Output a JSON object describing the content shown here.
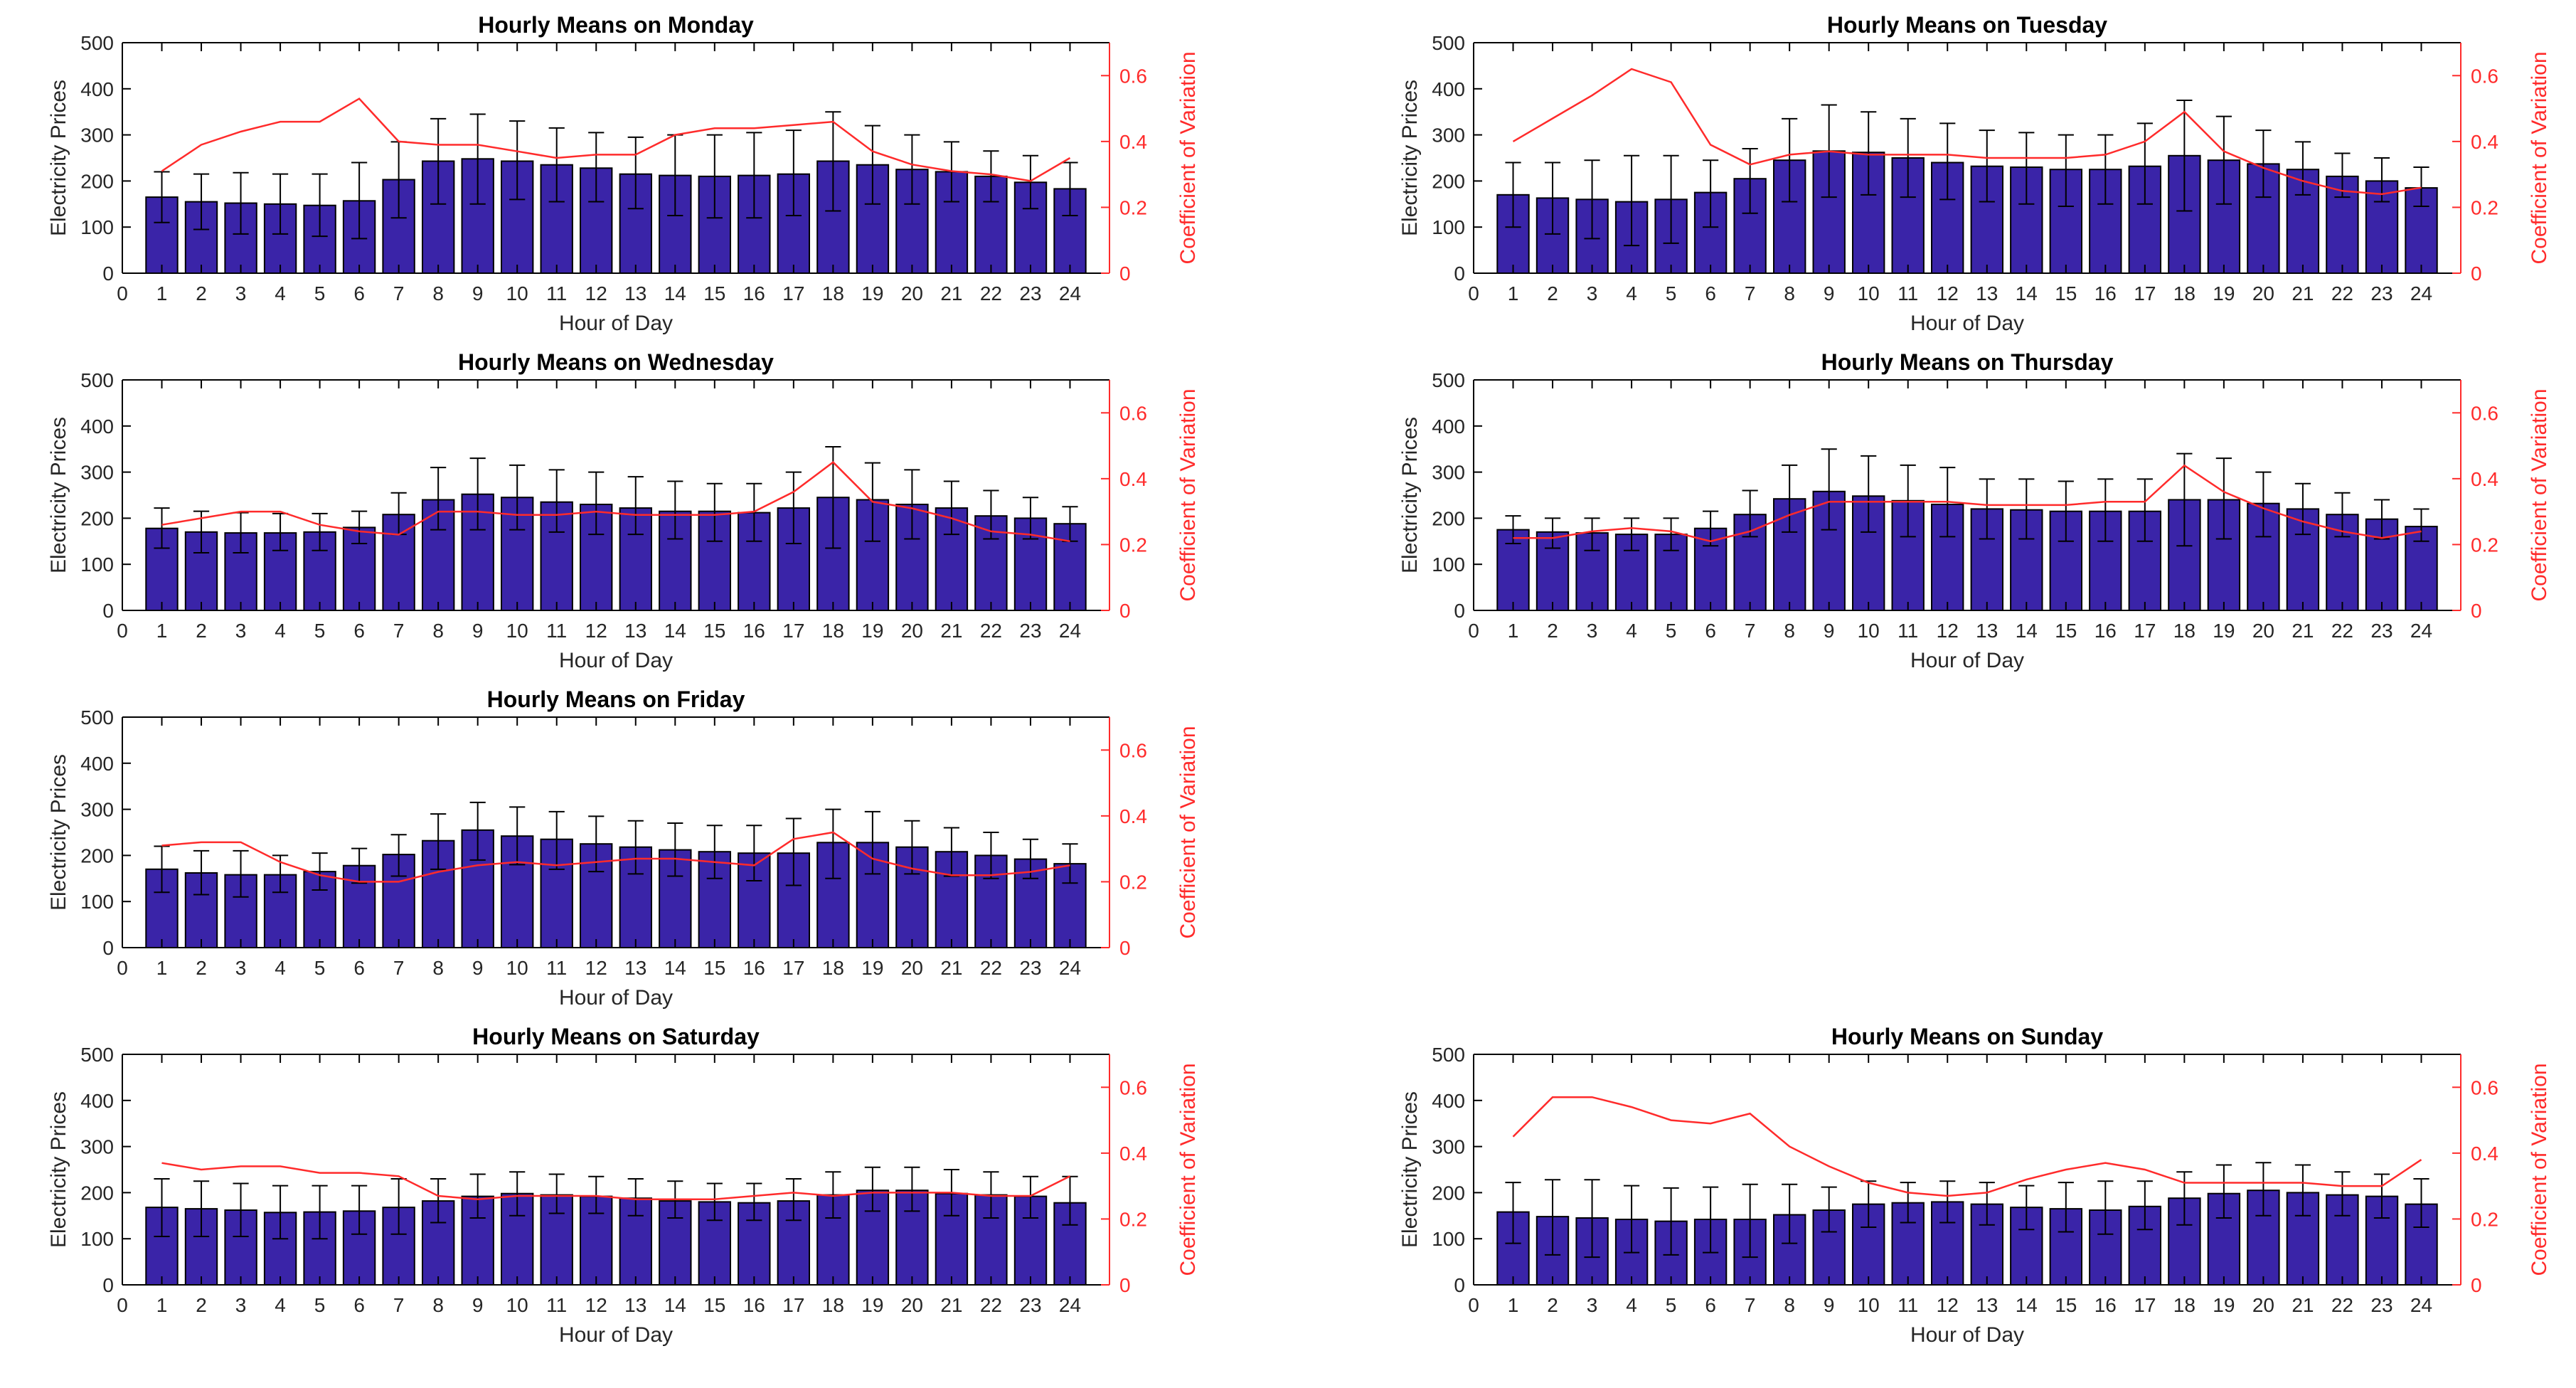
{
  "figure": {
    "shared": {
      "xlabel": "Hour of Day",
      "ylabel_left": "Electricity Prices",
      "ylabel_right": "Coefficient of Variation",
      "xlim": [
        0,
        25
      ],
      "xticks": [
        0,
        1,
        2,
        3,
        4,
        5,
        6,
        7,
        8,
        9,
        10,
        11,
        12,
        13,
        14,
        15,
        16,
        17,
        18,
        19,
        20,
        21,
        22,
        23,
        24
      ],
      "ylim_left": [
        0,
        500
      ],
      "yticks_left": [
        0,
        100,
        200,
        300,
        400,
        500
      ],
      "ylim_right": [
        0,
        0.7
      ],
      "yticks_right": [
        0,
        0.2,
        0.4,
        0.6
      ],
      "ytick_labels_right": [
        "0",
        "0.2",
        "0.4",
        "0.6"
      ],
      "bar_color": "#3a24a8",
      "line_color": "#ff2b2b",
      "axis_color": "#000000"
    }
  },
  "chart_data": [
    {
      "type": "bar",
      "title": "Hourly Means on Monday",
      "x": [
        1,
        2,
        3,
        4,
        5,
        6,
        7,
        8,
        9,
        10,
        11,
        12,
        13,
        14,
        15,
        16,
        17,
        18,
        19,
        20,
        21,
        22,
        23,
        24
      ],
      "series": [
        {
          "name": "Mean electricity price",
          "values": [
            165,
            155,
            152,
            150,
            147,
            157,
            203,
            243,
            248,
            243,
            235,
            228,
            215,
            212,
            210,
            212,
            215,
            243,
            235,
            225,
            220,
            210,
            197,
            183
          ]
        },
        {
          "name": "Error bar low",
          "values": [
            110,
            95,
            85,
            85,
            80,
            75,
            120,
            150,
            150,
            160,
            155,
            155,
            140,
            125,
            120,
            120,
            125,
            135,
            150,
            150,
            155,
            155,
            140,
            125
          ]
        },
        {
          "name": "Error bar high",
          "values": [
            220,
            215,
            218,
            215,
            215,
            240,
            285,
            335,
            345,
            330,
            315,
            305,
            295,
            300,
            300,
            305,
            310,
            350,
            320,
            300,
            285,
            265,
            255,
            240
          ]
        },
        {
          "name": "Coefficient of Variation",
          "axis": "right",
          "values": [
            0.31,
            0.39,
            0.43,
            0.46,
            0.46,
            0.53,
            0.4,
            0.39,
            0.39,
            0.37,
            0.35,
            0.36,
            0.36,
            0.42,
            0.44,
            0.44,
            0.45,
            0.46,
            0.37,
            0.33,
            0.31,
            0.3,
            0.28,
            0.35
          ]
        }
      ]
    },
    {
      "type": "bar",
      "title": "Hourly Means on Tuesday",
      "x": [
        1,
        2,
        3,
        4,
        5,
        6,
        7,
        8,
        9,
        10,
        11,
        12,
        13,
        14,
        15,
        16,
        17,
        18,
        19,
        20,
        21,
        22,
        23,
        24
      ],
      "series": [
        {
          "name": "Mean electricity price",
          "values": [
            170,
            163,
            160,
            155,
            160,
            175,
            205,
            245,
            265,
            262,
            250,
            240,
            232,
            230,
            225,
            225,
            232,
            255,
            245,
            237,
            225,
            210,
            200,
            185
          ]
        },
        {
          "name": "Error bar low",
          "values": [
            100,
            85,
            75,
            60,
            65,
            100,
            130,
            155,
            165,
            170,
            165,
            160,
            155,
            150,
            145,
            150,
            150,
            135,
            150,
            165,
            170,
            165,
            155,
            145
          ]
        },
        {
          "name": "Error bar high",
          "values": [
            240,
            240,
            245,
            255,
            255,
            245,
            270,
            335,
            365,
            350,
            335,
            325,
            310,
            305,
            300,
            300,
            325,
            375,
            340,
            310,
            285,
            260,
            250,
            230
          ]
        },
        {
          "name": "Coefficient of Variation",
          "axis": "right",
          "values": [
            0.4,
            0.47,
            0.54,
            0.62,
            0.58,
            0.39,
            0.33,
            0.36,
            0.37,
            0.36,
            0.36,
            0.36,
            0.35,
            0.35,
            0.35,
            0.36,
            0.4,
            0.49,
            0.37,
            0.32,
            0.28,
            0.25,
            0.24,
            0.26
          ]
        }
      ]
    },
    {
      "type": "bar",
      "title": "Hourly Means on Wednesday",
      "x": [
        1,
        2,
        3,
        4,
        5,
        6,
        7,
        8,
        9,
        10,
        11,
        12,
        13,
        14,
        15,
        16,
        17,
        18,
        19,
        20,
        21,
        22,
        23,
        24
      ],
      "series": [
        {
          "name": "Mean electricity price",
          "values": [
            178,
            170,
            168,
            168,
            170,
            180,
            208,
            240,
            252,
            245,
            235,
            230,
            222,
            215,
            215,
            212,
            222,
            245,
            240,
            230,
            222,
            205,
            200,
            188
          ]
        },
        {
          "name": "Error bar low",
          "values": [
            135,
            125,
            125,
            130,
            130,
            145,
            165,
            175,
            175,
            175,
            170,
            165,
            165,
            155,
            150,
            150,
            145,
            135,
            150,
            155,
            165,
            155,
            155,
            150
          ]
        },
        {
          "name": "Error bar high",
          "values": [
            222,
            215,
            212,
            210,
            210,
            215,
            255,
            310,
            330,
            315,
            305,
            300,
            290,
            280,
            275,
            275,
            300,
            355,
            320,
            305,
            280,
            260,
            245,
            225
          ]
        },
        {
          "name": "Coefficient of Variation",
          "axis": "right",
          "values": [
            0.26,
            0.28,
            0.3,
            0.3,
            0.26,
            0.24,
            0.23,
            0.3,
            0.3,
            0.29,
            0.29,
            0.3,
            0.29,
            0.29,
            0.29,
            0.3,
            0.36,
            0.45,
            0.33,
            0.31,
            0.28,
            0.24,
            0.23,
            0.21
          ]
        }
      ]
    },
    {
      "type": "bar",
      "title": "Hourly Means on Thursday",
      "x": [
        1,
        2,
        3,
        4,
        5,
        6,
        7,
        8,
        9,
        10,
        11,
        12,
        13,
        14,
        15,
        16,
        17,
        18,
        19,
        20,
        21,
        22,
        23,
        24
      ],
      "series": [
        {
          "name": "Mean electricity price",
          "values": [
            175,
            170,
            168,
            165,
            165,
            178,
            208,
            242,
            258,
            248,
            238,
            230,
            220,
            218,
            215,
            215,
            215,
            240,
            240,
            232,
            220,
            208,
            198,
            182
          ]
        },
        {
          "name": "Error bar low",
          "values": [
            145,
            135,
            130,
            130,
            130,
            140,
            160,
            170,
            175,
            170,
            160,
            160,
            155,
            155,
            150,
            150,
            150,
            140,
            155,
            160,
            165,
            160,
            155,
            150
          ]
        },
        {
          "name": "Error bar high",
          "values": [
            205,
            200,
            200,
            200,
            200,
            215,
            260,
            315,
            350,
            335,
            315,
            310,
            285,
            285,
            280,
            285,
            285,
            340,
            330,
            300,
            275,
            255,
            240,
            220
          ]
        },
        {
          "name": "Coefficient of Variation",
          "axis": "right",
          "values": [
            0.22,
            0.22,
            0.24,
            0.25,
            0.24,
            0.21,
            0.24,
            0.29,
            0.33,
            0.33,
            0.33,
            0.33,
            0.32,
            0.32,
            0.32,
            0.33,
            0.33,
            0.44,
            0.36,
            0.31,
            0.27,
            0.24,
            0.22,
            0.24
          ]
        }
      ]
    },
    {
      "type": "bar",
      "title": "Hourly Means on Friday",
      "x": [
        1,
        2,
        3,
        4,
        5,
        6,
        7,
        8,
        9,
        10,
        11,
        12,
        13,
        14,
        15,
        16,
        17,
        18,
        19,
        20,
        21,
        22,
        23,
        24
      ],
      "series": [
        {
          "name": "Mean electricity price",
          "values": [
            170,
            162,
            158,
            158,
            165,
            178,
            202,
            232,
            255,
            242,
            235,
            225,
            218,
            212,
            208,
            205,
            205,
            228,
            228,
            218,
            208,
            200,
            192,
            182
          ]
        },
        {
          "name": "Error bar low",
          "values": [
            120,
            115,
            110,
            120,
            125,
            140,
            155,
            170,
            190,
            180,
            170,
            165,
            160,
            155,
            150,
            145,
            135,
            150,
            160,
            160,
            155,
            150,
            150,
            140
          ]
        },
        {
          "name": "Error bar high",
          "values": [
            220,
            210,
            210,
            200,
            205,
            215,
            245,
            290,
            315,
            305,
            295,
            285,
            275,
            270,
            265,
            265,
            280,
            300,
            295,
            275,
            260,
            250,
            235,
            225
          ]
        },
        {
          "name": "Coefficient of Variation",
          "axis": "right",
          "values": [
            0.31,
            0.32,
            0.32,
            0.26,
            0.22,
            0.2,
            0.2,
            0.23,
            0.25,
            0.26,
            0.25,
            0.26,
            0.27,
            0.27,
            0.26,
            0.25,
            0.33,
            0.35,
            0.27,
            0.24,
            0.22,
            0.22,
            0.23,
            0.25
          ]
        }
      ]
    },
    {
      "type": "bar",
      "title": "Hourly Means on Saturday",
      "x": [
        1,
        2,
        3,
        4,
        5,
        6,
        7,
        8,
        9,
        10,
        11,
        12,
        13,
        14,
        15,
        16,
        17,
        18,
        19,
        20,
        21,
        22,
        23,
        24
      ],
      "series": [
        {
          "name": "Mean electricity price",
          "values": [
            168,
            165,
            162,
            157,
            158,
            160,
            168,
            182,
            192,
            198,
            195,
            192,
            188,
            182,
            180,
            178,
            182,
            195,
            205,
            205,
            198,
            195,
            192,
            178
          ]
        },
        {
          "name": "Error bar low",
          "values": [
            105,
            105,
            105,
            100,
            100,
            110,
            110,
            135,
            145,
            150,
            155,
            155,
            150,
            145,
            140,
            140,
            140,
            145,
            160,
            160,
            150,
            145,
            145,
            130
          ]
        },
        {
          "name": "Error bar high",
          "values": [
            230,
            225,
            220,
            215,
            215,
            215,
            230,
            230,
            240,
            245,
            240,
            235,
            230,
            225,
            220,
            220,
            230,
            245,
            255,
            255,
            250,
            245,
            235,
            235
          ]
        },
        {
          "name": "Coefficient of Variation",
          "axis": "right",
          "values": [
            0.37,
            0.35,
            0.36,
            0.36,
            0.34,
            0.34,
            0.33,
            0.27,
            0.26,
            0.27,
            0.27,
            0.27,
            0.26,
            0.26,
            0.26,
            0.27,
            0.28,
            0.27,
            0.28,
            0.28,
            0.28,
            0.27,
            0.27,
            0.33
          ]
        }
      ]
    },
    {
      "type": "bar",
      "title": "Hourly Means on Sunday",
      "x": [
        1,
        2,
        3,
        4,
        5,
        6,
        7,
        8,
        9,
        10,
        11,
        12,
        13,
        14,
        15,
        16,
        17,
        18,
        19,
        20,
        21,
        22,
        23,
        24
      ],
      "series": [
        {
          "name": "Mean electricity price",
          "values": [
            158,
            148,
            145,
            142,
            138,
            142,
            142,
            152,
            162,
            175,
            178,
            180,
            175,
            168,
            165,
            162,
            170,
            188,
            198,
            205,
            200,
            195,
            192,
            175
          ]
        },
        {
          "name": "Error bar low",
          "values": [
            90,
            65,
            60,
            70,
            65,
            70,
            60,
            90,
            115,
            125,
            135,
            135,
            130,
            120,
            115,
            110,
            120,
            130,
            145,
            150,
            150,
            150,
            145,
            125
          ]
        },
        {
          "name": "Error bar high",
          "values": [
            222,
            228,
            228,
            215,
            210,
            212,
            218,
            218,
            212,
            225,
            222,
            225,
            222,
            215,
            222,
            225,
            225,
            245,
            260,
            265,
            260,
            245,
            240,
            230
          ]
        },
        {
          "name": "Coefficient of Variation",
          "axis": "right",
          "values": [
            0.45,
            0.57,
            0.57,
            0.54,
            0.5,
            0.49,
            0.52,
            0.42,
            0.36,
            0.31,
            0.28,
            0.27,
            0.28,
            0.32,
            0.35,
            0.37,
            0.35,
            0.31,
            0.31,
            0.31,
            0.31,
            0.3,
            0.3,
            0.38
          ]
        }
      ]
    }
  ]
}
